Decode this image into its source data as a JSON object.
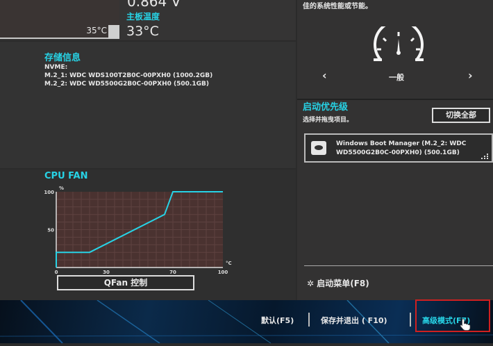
{
  "voltage": {
    "value": "0.864 V"
  },
  "mb_temp": {
    "label": "主板温度",
    "value": "33°C"
  },
  "cpu_temp_chart": {
    "current": "35°C"
  },
  "storage": {
    "title": "存储信息",
    "type": "NVME:",
    "items": [
      "M.2_1: WDC WDS100T2B0C-00PXH0 (1000.2GB)",
      "M.2_2: WDC WD5500G2B0C-00PXH0 (500.1GB)"
    ]
  },
  "fan": {
    "title": "CPU FAN",
    "qfan_label": "QFan 控制"
  },
  "chart_data": {
    "type": "line",
    "title": "CPU FAN",
    "xlabel": "°C",
    "ylabel": "%",
    "xlim": [
      0,
      100
    ],
    "ylim": [
      0,
      100
    ],
    "xticks": [
      "0",
      "30",
      "70",
      "100"
    ],
    "yticks": [
      "0",
      "50",
      "100"
    ],
    "grid": true,
    "x": [
      0,
      0,
      20,
      65,
      70,
      100
    ],
    "y": [
      0,
      20,
      20,
      70,
      100,
      100
    ],
    "color": "#27d3e6"
  },
  "profile": {
    "desc": "佳的系统性能或节能。",
    "mode": "一般",
    "prev": "‹",
    "next": "›"
  },
  "boot": {
    "title": "启动优先级",
    "subtitle": "选择并拖曳项目。",
    "switch_all": "切换全部",
    "items": [
      {
        "line1": "Windows Boot Manager (M.2_2: WDC",
        "line2": "WD5500G2B0C-00PXH0) (500.1GB)"
      }
    ]
  },
  "boot_menu": {
    "label": "启动菜单(F8)"
  },
  "footer": {
    "default": "默认(F5)",
    "save_exit": "保存并退出 ( F10)",
    "advanced": "高级模式(F7)",
    "highlight_color": "#d02020"
  }
}
